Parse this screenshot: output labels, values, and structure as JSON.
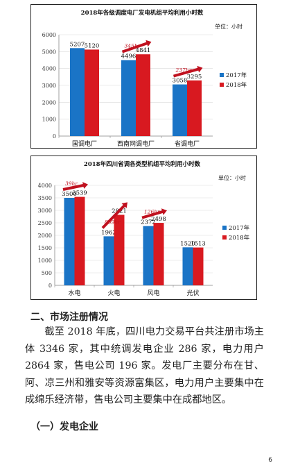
{
  "colors": {
    "y2017": "#1a74c6",
    "y2018": "#d81920",
    "arrow": "#c0111f",
    "ylabel": "#333333"
  },
  "chart_data": [
    {
      "type": "bar",
      "title": "2018年各级调度电厂发电机组平均利用小时数",
      "unit_label": "单位：小时",
      "categories": [
        "国调电厂",
        "西南网调电厂",
        "省调电厂"
      ],
      "series": [
        {
          "name": "2017年",
          "values": [
            5207,
            4496,
            3058
          ]
        },
        {
          "name": "2018年",
          "values": [
            5120,
            4841,
            3295
          ]
        }
      ],
      "ylim": [
        0,
        6000
      ],
      "yticks": [
        0,
        1000,
        2000,
        3000,
        4000,
        5000,
        6000
      ],
      "legend": "right",
      "annotations": [
        {
          "text": "345hr",
          "category_index": 1
        },
        {
          "text": "237hr",
          "category_index": 2
        }
      ]
    },
    {
      "type": "bar",
      "title": "2018年四川省调各类型机组平均利用小时数",
      "unit_label": "单位：小时",
      "categories": [
        "水电",
        "火电",
        "风电",
        "光伏"
      ],
      "series": [
        {
          "name": "2017年",
          "values": [
            3500,
            1962,
            2372,
            1520
          ]
        },
        {
          "name": "2018年",
          "values": [
            3539,
            2821,
            2498,
            1513
          ]
        }
      ],
      "ylim": [
        0,
        4000
      ],
      "yticks": [
        0,
        500,
        1000,
        1500,
        2000,
        2500,
        3000,
        3500,
        4000
      ],
      "legend": "right",
      "annotations": [
        {
          "text": "39hr",
          "category_index": 0
        },
        {
          "text": "859hr",
          "category_index": 1
        },
        {
          "text": "126hr",
          "category_index": 2
        }
      ]
    }
  ],
  "section": {
    "heading": "二、市场注册情况"
  },
  "paragraph": "截至 2018 年底，四川电力交易平台共注册市场主体 3346 家，其中统调发电企业 286 家，电力用户 2864 家，售电公司 196 家。发电厂主要分布在甘、阿、凉三州和雅安等资源富集区，电力用户主要集中在成绵乐经济带，售电公司主要集中在成都地区。",
  "subsection": {
    "heading": "（一）发电企业"
  },
  "page_number": "6"
}
